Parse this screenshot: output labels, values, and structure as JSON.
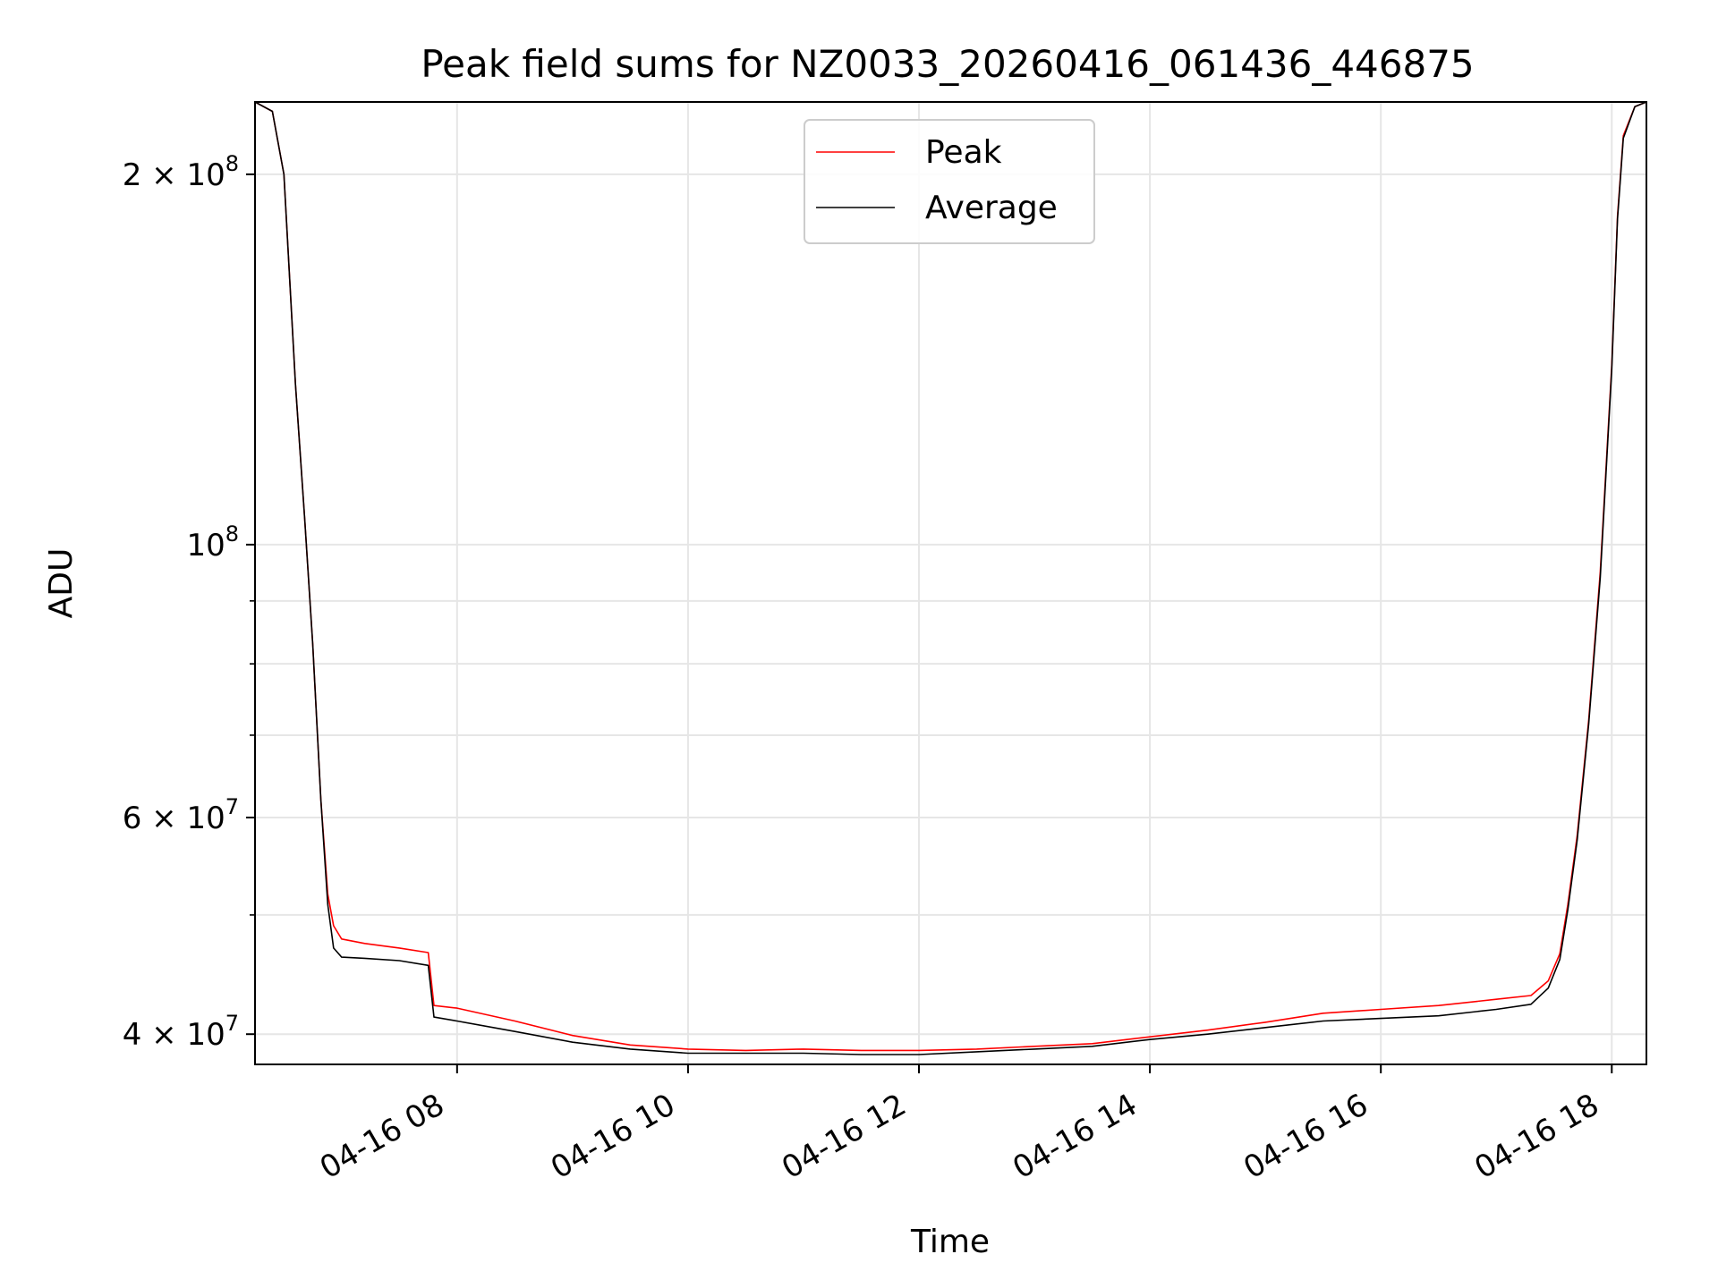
{
  "chart_data": {
    "type": "line",
    "title": "Peak field sums for NZ0033_20260416_061436_446875",
    "xlabel": "Time",
    "ylabel": "ADU",
    "yscale": "log",
    "grid": true,
    "legend_position": "top-center",
    "x_unit": "hours (clock time on 2026-04-16)",
    "xlim": [
      6.25,
      18.3
    ],
    "ylim": [
      37800000,
      229000000
    ],
    "x_ticks": [
      {
        "value": 8,
        "label": "04-16 08"
      },
      {
        "value": 10,
        "label": "04-16 10"
      },
      {
        "value": 12,
        "label": "04-16 12"
      },
      {
        "value": 14,
        "label": "04-16 14"
      },
      {
        "value": 16,
        "label": "04-16 16"
      },
      {
        "value": 18,
        "label": "04-16 18"
      }
    ],
    "y_ticks": [
      {
        "value": 40000000,
        "base": "4 × 10",
        "exp": "7"
      },
      {
        "value": 60000000,
        "base": "6 × 10",
        "exp": "7"
      },
      {
        "value": 100000000,
        "base": "10",
        "exp": "8"
      },
      {
        "value": 200000000,
        "base": "2 × 10",
        "exp": "8"
      }
    ],
    "y_minor_ticks": [
      50000000,
      70000000,
      80000000,
      90000000
    ],
    "series": [
      {
        "name": "Peak",
        "color": "#ff0000",
        "x": [
          6.25,
          6.4,
          6.5,
          6.6,
          6.68,
          6.75,
          6.82,
          6.88,
          6.93,
          7.0,
          7.2,
          7.5,
          7.75,
          7.8,
          8.0,
          8.5,
          9.0,
          9.5,
          10.0,
          10.5,
          11.0,
          11.5,
          12.0,
          12.5,
          13.0,
          13.5,
          14.0,
          14.5,
          15.0,
          15.5,
          16.0,
          16.5,
          17.0,
          17.3,
          17.45,
          17.55,
          17.62,
          17.7,
          17.8,
          17.9,
          18.0,
          18.05,
          18.1,
          18.2,
          18.3
        ],
        "y": [
          229000000,
          225000000,
          200000000,
          135000000,
          105000000,
          83000000,
          62000000,
          52000000,
          49000000,
          47800000,
          47400000,
          47000000,
          46600000,
          42200000,
          42000000,
          41000000,
          39900000,
          39200000,
          38900000,
          38800000,
          38900000,
          38800000,
          38800000,
          38900000,
          39100000,
          39300000,
          39800000,
          40300000,
          40900000,
          41600000,
          41900000,
          42200000,
          42700000,
          43000000,
          44200000,
          46500000,
          51000000,
          58000000,
          72000000,
          95000000,
          140000000,
          185000000,
          215000000,
          227000000,
          229000000
        ]
      },
      {
        "name": "Average",
        "color": "#000000",
        "x": [
          6.25,
          6.4,
          6.5,
          6.6,
          6.68,
          6.75,
          6.82,
          6.88,
          6.93,
          7.0,
          7.2,
          7.5,
          7.75,
          7.8,
          8.0,
          8.5,
          9.0,
          9.5,
          10.0,
          10.5,
          11.0,
          11.5,
          12.0,
          12.5,
          13.0,
          13.5,
          14.0,
          14.5,
          15.0,
          15.5,
          16.0,
          16.5,
          17.0,
          17.3,
          17.45,
          17.55,
          17.62,
          17.7,
          17.8,
          17.9,
          18.0,
          18.05,
          18.1,
          18.2,
          18.3
        ],
        "y": [
          229000000,
          225000000,
          200000000,
          135000000,
          105000000,
          83000000,
          62000000,
          51000000,
          47000000,
          46200000,
          46100000,
          45900000,
          45500000,
          41300000,
          41000000,
          40200000,
          39400000,
          38900000,
          38600000,
          38600000,
          38600000,
          38500000,
          38500000,
          38700000,
          38900000,
          39100000,
          39600000,
          40000000,
          40500000,
          41000000,
          41200000,
          41400000,
          41900000,
          42300000,
          43600000,
          46000000,
          50500000,
          57500000,
          71500000,
          94000000,
          139000000,
          184000000,
          214000000,
          227000000,
          229000000
        ]
      }
    ]
  },
  "legend": {
    "items": [
      {
        "label": "Peak",
        "color": "#ff0000"
      },
      {
        "label": "Average",
        "color": "#000000"
      }
    ]
  }
}
